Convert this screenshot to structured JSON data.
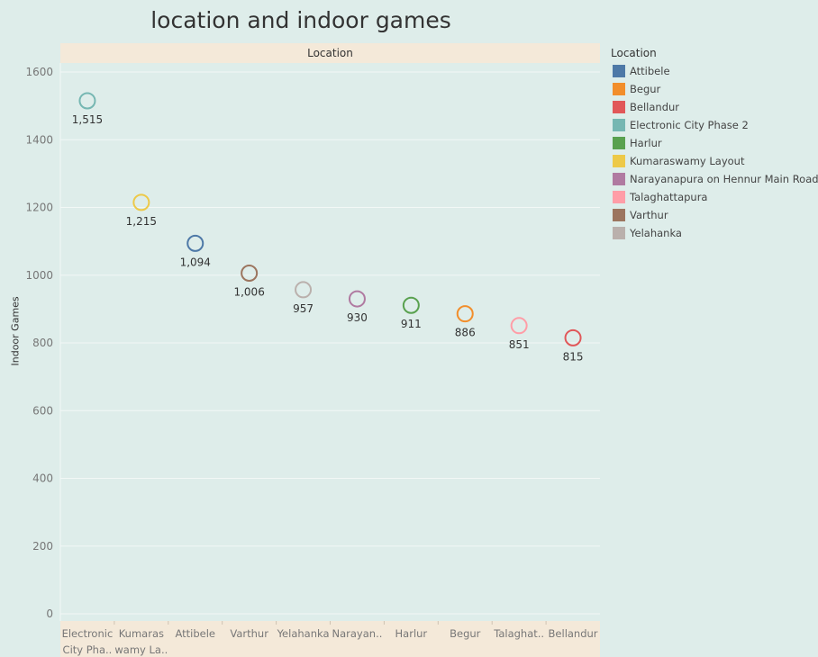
{
  "title": "location and indoor games",
  "chart_data": {
    "type": "scatter",
    "title": "location and indoor games",
    "column_header": "Location",
    "ylabel": "Indoor Games",
    "ylim": [
      0,
      1650
    ],
    "yticks": [
      0,
      200,
      400,
      600,
      800,
      1000,
      1200,
      1400,
      1600
    ],
    "grid": true,
    "categories": [
      "Electronic City Phase 2",
      "Kumaraswamy Layout",
      "Attibele",
      "Varthur",
      "Yelahanka",
      "Narayanapura on Hennur Main Road",
      "Harlur",
      "Begur",
      "Talaghattapura",
      "Bellandur"
    ],
    "category_labels": [
      [
        "Electronic",
        "City Pha.."
      ],
      [
        "Kumaras",
        "wamy La.."
      ],
      [
        "Attibele"
      ],
      [
        "Varthur"
      ],
      [
        "Yelahanka"
      ],
      [
        "Narayan.."
      ],
      [
        "Harlur"
      ],
      [
        "Begur"
      ],
      [
        "Talaghat.."
      ],
      [
        "Bellandur"
      ]
    ],
    "values": [
      1515,
      1215,
      1094,
      1006,
      957,
      930,
      911,
      886,
      851,
      815
    ],
    "value_labels": [
      "1,515",
      "1,215",
      "1,094",
      "1,006",
      "957",
      "930",
      "911",
      "886",
      "851",
      "815"
    ],
    "point_colors": [
      "#76b7b2",
      "#edc948",
      "#4e79a7",
      "#9c755f",
      "#bab0ac",
      "#b07aa1",
      "#59a14f",
      "#f28e2b",
      "#ff9da7",
      "#e15759"
    ],
    "legend_title": "Location",
    "legend_position": "right",
    "legend": [
      {
        "label": "Attibele",
        "color": "#4e79a7"
      },
      {
        "label": "Begur",
        "color": "#f28e2b"
      },
      {
        "label": "Bellandur",
        "color": "#e15759"
      },
      {
        "label": "Electronic City Phase 2",
        "color": "#76b7b2"
      },
      {
        "label": "Harlur",
        "color": "#59a14f"
      },
      {
        "label": "Kumaraswamy Layout",
        "color": "#edc948"
      },
      {
        "label": "Narayanapura on Hennur Main Road",
        "color": "#b07aa1"
      },
      {
        "label": "Talaghattapura",
        "color": "#ff9da7"
      },
      {
        "label": "Varthur",
        "color": "#9c755f"
      },
      {
        "label": "Yelahanka",
        "color": "#bab0ac"
      }
    ]
  }
}
